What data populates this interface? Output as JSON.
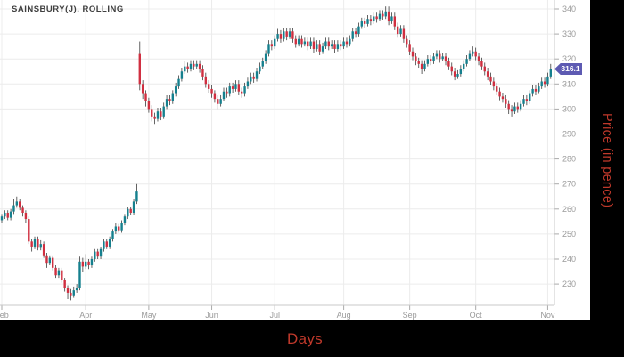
{
  "title": "SAINSBURY(J), ROLLING",
  "x_axis": {
    "label": "Days",
    "ticks": [
      {
        "label": "Feb",
        "candle_index": 0
      },
      {
        "label": "Apr",
        "candle_index": 28
      },
      {
        "label": "May",
        "candle_index": 49
      },
      {
        "label": "Jun",
        "candle_index": 70
      },
      {
        "label": "Jul",
        "candle_index": 91
      },
      {
        "label": "Aug",
        "candle_index": 114
      },
      {
        "label": "Sep",
        "candle_index": 136
      },
      {
        "label": "Oct",
        "candle_index": 158
      },
      {
        "label": "Nov",
        "candle_index": 182
      }
    ]
  },
  "y_axis": {
    "label": "Price (in pence)",
    "ticks": [
      340,
      330,
      320,
      310,
      300,
      290,
      280,
      270,
      260,
      250,
      240,
      230
    ],
    "badge_label": "316.1",
    "badge_value": 316.1
  },
  "colors": {
    "up_candle": "#15808e",
    "down_candle": "#d02f40",
    "wick": "#3c3c3c",
    "grid": "#ececec",
    "axis_line": "#c9c9c9",
    "tick_mark": "#aaaaaa",
    "axis_text": "#9a9a9a",
    "title_text": "#3f3f3f",
    "badge_bg": "#5d5ab2",
    "frame_bg": "#000000",
    "axis_title_red": "#c0392b",
    "plot_bg": "#ffffff"
  },
  "chart_data": {
    "type": "candlestick",
    "title": "SAINSBURY(J), ROLLING",
    "xlabel": "Days",
    "ylabel": "Price (in pence)",
    "ylim": [
      222,
      344
    ],
    "grid": true,
    "last_close": 316.1,
    "x_tick_labels": [
      "Feb",
      "Apr",
      "May",
      "Jun",
      "Jul",
      "Aug",
      "Sep",
      "Oct",
      "Nov"
    ],
    "candles_format": [
      "open",
      "high",
      "low",
      "close"
    ],
    "candles": [
      [
        255.5,
        258,
        254.5,
        257
      ],
      [
        257,
        259.5,
        256,
        258.5
      ],
      [
        258.5,
        259.5,
        255.5,
        256.5
      ],
      [
        256.5,
        260,
        255.5,
        259
      ],
      [
        259,
        264,
        258,
        261.5
      ],
      [
        261.5,
        265,
        260.5,
        263
      ],
      [
        263,
        264,
        259.5,
        260.5
      ],
      [
        260.5,
        261.5,
        257,
        258.5
      ],
      [
        258.5,
        259.5,
        254.5,
        256
      ],
      [
        256,
        257,
        246,
        247
      ],
      [
        247,
        248,
        243,
        245
      ],
      [
        245,
        249,
        244,
        248
      ],
      [
        248,
        249,
        243.5,
        244.5
      ],
      [
        244.5,
        247.5,
        243.5,
        246
      ],
      [
        246,
        247,
        240.5,
        241.5
      ],
      [
        241.5,
        242.5,
        236.5,
        238.5
      ],
      [
        238.5,
        241.5,
        237.5,
        240.5
      ],
      [
        240.5,
        241.5,
        235.5,
        236.5
      ],
      [
        236.5,
        237.5,
        232.5,
        233.5
      ],
      [
        233.5,
        236.5,
        232.5,
        235.5
      ],
      [
        235.5,
        236.5,
        230.5,
        231.5
      ],
      [
        231.5,
        232.5,
        227,
        228.5
      ],
      [
        228.5,
        229.5,
        224,
        226.5
      ],
      [
        226.5,
        228,
        223.5,
        225.5
      ],
      [
        225.5,
        229,
        224.5,
        227.5
      ],
      [
        227.5,
        230,
        226.5,
        228.5
      ],
      [
        228.5,
        241,
        227.5,
        239
      ],
      [
        239,
        240.5,
        235,
        237
      ],
      [
        237,
        242,
        236,
        239
      ],
      [
        239,
        240,
        236,
        237.5
      ],
      [
        237.5,
        241,
        236.5,
        240
      ],
      [
        240,
        244,
        239,
        243
      ],
      [
        243,
        244,
        240,
        241
      ],
      [
        241,
        245,
        240,
        244
      ],
      [
        244,
        248,
        243,
        247
      ],
      [
        247,
        248,
        244,
        245
      ],
      [
        245,
        249,
        244,
        248
      ],
      [
        248,
        252,
        247,
        251
      ],
      [
        251,
        254.5,
        250,
        253
      ],
      [
        253,
        254,
        250.5,
        251.5
      ],
      [
        251.5,
        255.5,
        250.5,
        254.5
      ],
      [
        254.5,
        258,
        253.5,
        257
      ],
      [
        257,
        261,
        256,
        260
      ],
      [
        260,
        261,
        257.5,
        258.5
      ],
      [
        258.5,
        264,
        257.5,
        263
      ],
      [
        263,
        270,
        262,
        267
      ],
      [
        322,
        327,
        307.5,
        310
      ],
      [
        310,
        311.5,
        304,
        306
      ],
      [
        306,
        307.5,
        301,
        303
      ],
      [
        303,
        304.5,
        298.5,
        300
      ],
      [
        300,
        301.5,
        295,
        297
      ],
      [
        297,
        298.5,
        294,
        296
      ],
      [
        296,
        300.5,
        295,
        299
      ],
      [
        299,
        300.5,
        295.5,
        297
      ],
      [
        297,
        302.5,
        296,
        301
      ],
      [
        301,
        305.5,
        300,
        304
      ],
      [
        304,
        305.5,
        301.5,
        303
      ],
      [
        303,
        307.5,
        302,
        306
      ],
      [
        306,
        310.5,
        305,
        309
      ],
      [
        309,
        313.5,
        308,
        312
      ],
      [
        312,
        316.5,
        311,
        315
      ],
      [
        315,
        319,
        314,
        317
      ],
      [
        317,
        318.5,
        314.5,
        316
      ],
      [
        316,
        319.5,
        315,
        318
      ],
      [
        318,
        319.5,
        315.5,
        317
      ],
      [
        317,
        319.5,
        316,
        318
      ],
      [
        318,
        319.5,
        314.5,
        316
      ],
      [
        316,
        317.5,
        311.5,
        313
      ],
      [
        313,
        314.5,
        308.5,
        310
      ],
      [
        310,
        311.5,
        306.5,
        308
      ],
      [
        308,
        309.5,
        304.5,
        306
      ],
      [
        306,
        307.5,
        302.5,
        304
      ],
      [
        304,
        305.5,
        300,
        302
      ],
      [
        302,
        305.5,
        301,
        304
      ],
      [
        304,
        308.5,
        303,
        307
      ],
      [
        307,
        308.5,
        304.5,
        306
      ],
      [
        306,
        310.5,
        305,
        309
      ],
      [
        309,
        310.5,
        306.5,
        308
      ],
      [
        308,
        311.5,
        307,
        310
      ],
      [
        310,
        311.5,
        305.5,
        307
      ],
      [
        307,
        308.5,
        304.5,
        306
      ],
      [
        306,
        310.5,
        305,
        309
      ],
      [
        309,
        312.5,
        308,
        311
      ],
      [
        311,
        314.5,
        310,
        313
      ],
      [
        313,
        314.5,
        310.5,
        312
      ],
      [
        312,
        316.5,
        311,
        315
      ],
      [
        315,
        318.5,
        314,
        317
      ],
      [
        317,
        320.5,
        316,
        319
      ],
      [
        319,
        323.5,
        318,
        322
      ],
      [
        322,
        327.5,
        321,
        326
      ],
      [
        326,
        327.5,
        323.5,
        325
      ],
      [
        325,
        329.5,
        324,
        328
      ],
      [
        328,
        332,
        327,
        330
      ],
      [
        330,
        331.5,
        326.5,
        328
      ],
      [
        328,
        332.5,
        327,
        331
      ],
      [
        331,
        332.5,
        327.5,
        329
      ],
      [
        329,
        332.5,
        328,
        331
      ],
      [
        331,
        332.5,
        326.5,
        328
      ],
      [
        328,
        329.5,
        324.5,
        326
      ],
      [
        326,
        329.5,
        325,
        328
      ],
      [
        328,
        329.5,
        324.5,
        326
      ],
      [
        326,
        328.5,
        325,
        327
      ],
      [
        327,
        328.5,
        323.5,
        325
      ],
      [
        325,
        328.5,
        324,
        327
      ],
      [
        327,
        328.5,
        322.5,
        324
      ],
      [
        324,
        327.5,
        323,
        326
      ],
      [
        326,
        327.5,
        321.5,
        323
      ],
      [
        323,
        326.5,
        322,
        325
      ],
      [
        325,
        328.5,
        324,
        327
      ],
      [
        327,
        328.5,
        323.5,
        325
      ],
      [
        325,
        327.5,
        324,
        326
      ],
      [
        326,
        327.5,
        322.5,
        324
      ],
      [
        324,
        327.5,
        323,
        326
      ],
      [
        326,
        327.5,
        323.5,
        325
      ],
      [
        325,
        328.5,
        324,
        327
      ],
      [
        327,
        328.5,
        324.5,
        326
      ],
      [
        326,
        329.5,
        325,
        328
      ],
      [
        328,
        332.5,
        327,
        331
      ],
      [
        331,
        332.5,
        328.5,
        330
      ],
      [
        330,
        334.5,
        329,
        333
      ],
      [
        333,
        336.5,
        332,
        335
      ],
      [
        335,
        336.5,
        332.5,
        334
      ],
      [
        334,
        337.5,
        333,
        336
      ],
      [
        336,
        337.5,
        333.5,
        335
      ],
      [
        335,
        338.5,
        334,
        337
      ],
      [
        337,
        338.5,
        334.5,
        336
      ],
      [
        336,
        339.5,
        335,
        338
      ],
      [
        338,
        339.5,
        335.5,
        337
      ],
      [
        337,
        341,
        336,
        339
      ],
      [
        339,
        341,
        333.5,
        335
      ],
      [
        335,
        338.5,
        334,
        337
      ],
      [
        337,
        338.5,
        331.5,
        333
      ],
      [
        333,
        334.5,
        328.5,
        330
      ],
      [
        330,
        333.5,
        329,
        332
      ],
      [
        332,
        333.5,
        326.5,
        328
      ],
      [
        328,
        329.5,
        324.5,
        326
      ],
      [
        326,
        327.5,
        321.5,
        323
      ],
      [
        323,
        324.5,
        319.5,
        321
      ],
      [
        321,
        322.5,
        317.5,
        319
      ],
      [
        319,
        320.5,
        316.5,
        318
      ],
      [
        318,
        319.5,
        314,
        316
      ],
      [
        316,
        319.5,
        315,
        318
      ],
      [
        318,
        321.5,
        317,
        320
      ],
      [
        320,
        321.5,
        317.5,
        319
      ],
      [
        319,
        322.5,
        318,
        321
      ],
      [
        321,
        323.5,
        320,
        322
      ],
      [
        322,
        323.5,
        318.5,
        320
      ],
      [
        320,
        322.5,
        319,
        321
      ],
      [
        321,
        322.5,
        317.5,
        319
      ],
      [
        319,
        320.5,
        315.5,
        317
      ],
      [
        317,
        318.5,
        313.5,
        315
      ],
      [
        315,
        316.5,
        311.5,
        313
      ],
      [
        313,
        315.5,
        312,
        314
      ],
      [
        314,
        317.5,
        313,
        316
      ],
      [
        316,
        319.5,
        315,
        318
      ],
      [
        318,
        321.5,
        317,
        320
      ],
      [
        320,
        323.5,
        319,
        322
      ],
      [
        322,
        325,
        321,
        323
      ],
      [
        323,
        324.5,
        319.5,
        321
      ],
      [
        321,
        322.5,
        317.5,
        319
      ],
      [
        319,
        320.5,
        315.5,
        317
      ],
      [
        317,
        318.5,
        313.5,
        315
      ],
      [
        315,
        316.5,
        311.5,
        313
      ],
      [
        313,
        314.5,
        309.5,
        311
      ],
      [
        311,
        312.5,
        307.5,
        309
      ],
      [
        309,
        310.5,
        305.5,
        307
      ],
      [
        307,
        308.5,
        303.5,
        305
      ],
      [
        305,
        306.5,
        302.5,
        304
      ],
      [
        304,
        305.5,
        300.5,
        302
      ],
      [
        302,
        303.5,
        298,
        300
      ],
      [
        300,
        301.5,
        297,
        299
      ],
      [
        299,
        302.5,
        298,
        301
      ],
      [
        301,
        302.5,
        298.5,
        300
      ],
      [
        300,
        303.5,
        299,
        302
      ],
      [
        302,
        305.5,
        301,
        304
      ],
      [
        304,
        305.5,
        301.5,
        303
      ],
      [
        303,
        307.5,
        302,
        306
      ],
      [
        306,
        309.5,
        305,
        308
      ],
      [
        308,
        309.5,
        305.5,
        307
      ],
      [
        307,
        310.5,
        306,
        309
      ],
      [
        309,
        312.5,
        308,
        311
      ],
      [
        311,
        312.5,
        308.5,
        310
      ],
      [
        310,
        314.5,
        309,
        313
      ],
      [
        313,
        318,
        312,
        316.1
      ]
    ]
  }
}
